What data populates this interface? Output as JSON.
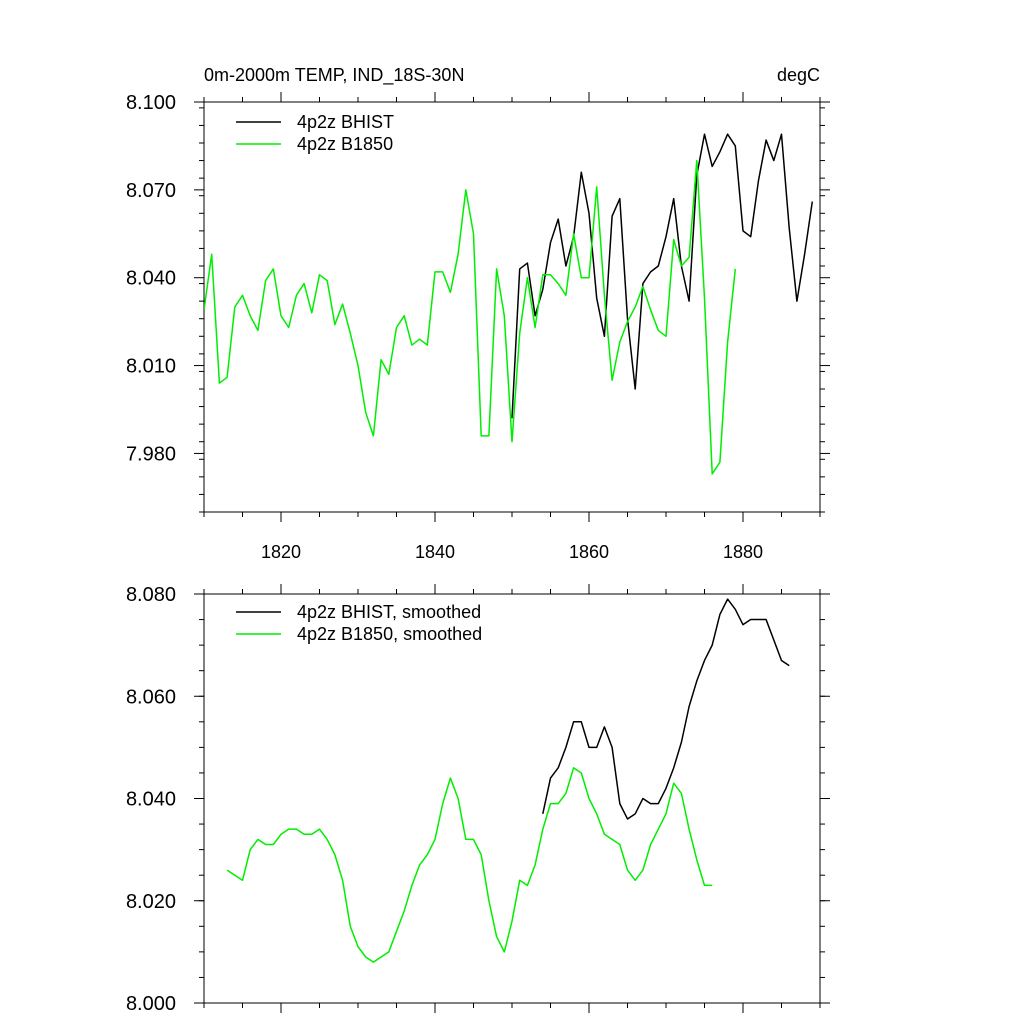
{
  "chart_data": [
    {
      "type": "line",
      "title_left": "0m-2000m TEMP, IND_18S-30N",
      "title_right": "degC",
      "xlim": [
        1810,
        1890
      ],
      "ylim": [
        7.96,
        8.1
      ],
      "x_major_ticks": [
        1820,
        1840,
        1860,
        1880
      ],
      "x_tick_labels": [
        "1820",
        "1840",
        "1860",
        "1880"
      ],
      "x_minor_step": 5,
      "y_major_ticks": [
        7.98,
        8.01,
        8.04,
        8.07,
        8.1
      ],
      "y_tick_labels": [
        "7.980",
        "8.010",
        "8.040",
        "8.070",
        "8.100"
      ],
      "y_minor_step": 0.006,
      "legend_position": "top-left",
      "series": [
        {
          "name": "4p2z BHIST",
          "color": "#000000",
          "x": [
            1850,
            1851,
            1852,
            1853,
            1854,
            1855,
            1856,
            1857,
            1858,
            1859,
            1860,
            1861,
            1862,
            1863,
            1864,
            1865,
            1866,
            1867,
            1868,
            1869,
            1870,
            1871,
            1872,
            1873,
            1874,
            1875,
            1876,
            1877,
            1878,
            1879,
            1880,
            1881,
            1882,
            1883,
            1884,
            1885,
            1886,
            1887,
            1888,
            1889
          ],
          "values": [
            7.992,
            8.043,
            8.045,
            8.027,
            8.036,
            8.052,
            8.06,
            8.044,
            8.054,
            8.076,
            8.062,
            8.033,
            8.02,
            8.061,
            8.067,
            8.026,
            8.002,
            8.038,
            8.042,
            8.044,
            8.054,
            8.067,
            8.044,
            8.032,
            8.075,
            8.089,
            8.078,
            8.083,
            8.089,
            8.085,
            8.056,
            8.054,
            8.073,
            8.087,
            8.08,
            8.089,
            8.057,
            8.032,
            8.048,
            8.066
          ]
        },
        {
          "name": "4p2z B1850",
          "color": "#00ee00",
          "x": [
            1810,
            1811,
            1812,
            1813,
            1814,
            1815,
            1816,
            1817,
            1818,
            1819,
            1820,
            1821,
            1822,
            1823,
            1824,
            1825,
            1826,
            1827,
            1828,
            1829,
            1830,
            1831,
            1832,
            1833,
            1834,
            1835,
            1836,
            1837,
            1838,
            1839,
            1840,
            1841,
            1842,
            1843,
            1844,
            1845,
            1846,
            1847,
            1848,
            1849,
            1850,
            1851,
            1852,
            1853,
            1854,
            1855,
            1856,
            1857,
            1858,
            1859,
            1860,
            1861,
            1862,
            1863,
            1864,
            1865,
            1866,
            1867,
            1868,
            1869,
            1870,
            1871,
            1872,
            1873,
            1874,
            1875,
            1876,
            1877,
            1878,
            1879
          ],
          "values": [
            8.029,
            8.048,
            8.004,
            8.006,
            8.03,
            8.034,
            8.027,
            8.022,
            8.039,
            8.043,
            8.027,
            8.023,
            8.034,
            8.038,
            8.028,
            8.041,
            8.039,
            8.024,
            8.031,
            8.021,
            8.01,
            7.994,
            7.986,
            8.012,
            8.007,
            8.023,
            8.027,
            8.017,
            8.019,
            8.017,
            8.042,
            8.042,
            8.035,
            8.048,
            8.07,
            8.055,
            7.986,
            7.986,
            8.043,
            8.027,
            7.984,
            8.021,
            8.04,
            8.023,
            8.041,
            8.041,
            8.038,
            8.034,
            8.055,
            8.04,
            8.04,
            8.071,
            8.034,
            8.005,
            8.018,
            8.025,
            8.03,
            8.037,
            8.029,
            8.022,
            8.02,
            8.053,
            8.044,
            8.047,
            8.08,
            8.033,
            7.973,
            7.977,
            8.018,
            8.043
          ]
        }
      ]
    },
    {
      "type": "line",
      "xlim": [
        1810,
        1890
      ],
      "ylim": [
        8.0,
        8.08
      ],
      "x_major_ticks": [
        1820,
        1840,
        1860,
        1880
      ],
      "x_minor_step": 5,
      "y_major_ticks": [
        8.0,
        8.02,
        8.04,
        8.06,
        8.08
      ],
      "y_tick_labels": [
        "8.000",
        "8.020",
        "8.040",
        "8.060",
        "8.080"
      ],
      "y_minor_step": 0.005,
      "legend_position": "top-left",
      "series": [
        {
          "name": "4p2z BHIST, smoothed",
          "color": "#000000",
          "x": [
            1854,
            1855,
            1856,
            1857,
            1858,
            1859,
            1860,
            1861,
            1862,
            1863,
            1864,
            1865,
            1866,
            1867,
            1868,
            1869,
            1870,
            1871,
            1872,
            1873,
            1874,
            1875,
            1876,
            1877,
            1878,
            1879,
            1880,
            1881,
            1882,
            1883,
            1884,
            1885,
            1886
          ],
          "values": [
            8.037,
            8.044,
            8.046,
            8.05,
            8.055,
            8.055,
            8.05,
            8.05,
            8.054,
            8.05,
            8.039,
            8.036,
            8.037,
            8.04,
            8.039,
            8.039,
            8.042,
            8.046,
            8.051,
            8.058,
            8.063,
            8.067,
            8.07,
            8.076,
            8.079,
            8.077,
            8.074,
            8.075,
            8.075,
            8.075,
            8.071,
            8.067,
            8.066
          ]
        },
        {
          "name": "4p2z B1850, smoothed",
          "color": "#00ee00",
          "x": [
            1813,
            1814,
            1815,
            1816,
            1817,
            1818,
            1819,
            1820,
            1821,
            1822,
            1823,
            1824,
            1825,
            1826,
            1827,
            1828,
            1829,
            1830,
            1831,
            1832,
            1833,
            1834,
            1835,
            1836,
            1837,
            1838,
            1839,
            1840,
            1841,
            1842,
            1843,
            1844,
            1845,
            1846,
            1847,
            1848,
            1849,
            1850,
            1851,
            1852,
            1853,
            1854,
            1855,
            1856,
            1857,
            1858,
            1859,
            1860,
            1861,
            1862,
            1863,
            1864,
            1865,
            1866,
            1867,
            1868,
            1869,
            1870,
            1871,
            1872,
            1873,
            1874,
            1875,
            1876
          ],
          "values": [
            8.026,
            8.025,
            8.024,
            8.03,
            8.032,
            8.031,
            8.031,
            8.033,
            8.034,
            8.034,
            8.033,
            8.033,
            8.034,
            8.032,
            8.029,
            8.024,
            8.015,
            8.011,
            8.009,
            8.008,
            8.009,
            8.01,
            8.014,
            8.018,
            8.023,
            8.027,
            8.029,
            8.032,
            8.039,
            8.044,
            8.04,
            8.032,
            8.032,
            8.029,
            8.02,
            8.013,
            8.01,
            8.016,
            8.024,
            8.023,
            8.027,
            8.034,
            8.039,
            8.039,
            8.041,
            8.046,
            8.045,
            8.04,
            8.037,
            8.033,
            8.032,
            8.031,
            8.026,
            8.024,
            8.026,
            8.031,
            8.034,
            8.037,
            8.043,
            8.041,
            8.034,
            8.028,
            8.023,
            8.023
          ]
        }
      ]
    }
  ]
}
